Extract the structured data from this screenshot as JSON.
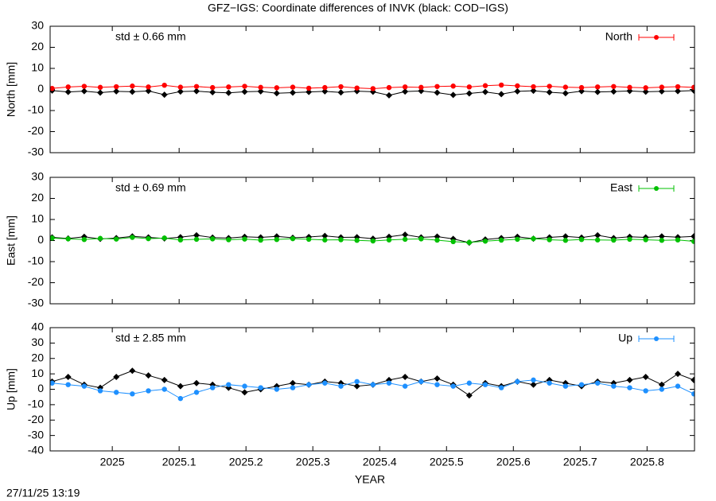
{
  "title": "GFZ−IGS: Coordinate differences of INVK (black: COD−IGS)",
  "timestamp": "27/11/25 13:19",
  "chart_data": [
    {
      "type": "line",
      "ylabel": "North [mm]",
      "annotation": "std ± 0.66 mm",
      "xlim": [
        2024.907,
        2025.871
      ],
      "xticks": [
        2025,
        2025.1,
        2025.2,
        2025.3,
        2025.4,
        2025.5,
        2025.6,
        2025.7,
        2025.8
      ],
      "ylim": [
        -30,
        30
      ],
      "yticks": [
        -30,
        -20,
        -10,
        0,
        10,
        20,
        30
      ],
      "legend": "upper right",
      "x": [
        2024.91,
        2024.934,
        2024.958,
        2024.982,
        2025.006,
        2025.03,
        2025.054,
        2025.078,
        2025.102,
        2025.126,
        2025.15,
        2025.174,
        2025.198,
        2025.222,
        2025.246,
        2025.27,
        2025.294,
        2025.318,
        2025.342,
        2025.366,
        2025.39,
        2025.414,
        2025.438,
        2025.462,
        2025.486,
        2025.51,
        2025.534,
        2025.558,
        2025.582,
        2025.606,
        2025.63,
        2025.654,
        2025.678,
        2025.702,
        2025.726,
        2025.75,
        2025.774,
        2025.798,
        2025.822,
        2025.846,
        2025.87
      ],
      "series": [
        {
          "color": "#000000",
          "values": [
            -0.5,
            -1.2,
            -0.8,
            -1.5,
            -0.9,
            -1.1,
            -0.7,
            -2.5,
            -1.0,
            -0.8,
            -1.3,
            -1.6,
            -1.1,
            -0.9,
            -1.8,
            -1.5,
            -1.2,
            -0.9,
            -1.4,
            -0.8,
            -1.1,
            -2.8,
            -1.0,
            -0.7,
            -1.5,
            -2.6,
            -1.9,
            -1.2,
            -2.2,
            -0.9,
            -0.6,
            -1.3,
            -1.8,
            -0.8,
            -1.2,
            -1.0,
            -0.7,
            -1.1,
            -0.9,
            -0.8,
            -0.5
          ]
        },
        {
          "name": "North",
          "color": "#ff0000",
          "values": [
            0.5,
            1.2,
            1.5,
            1.0,
            1.3,
            1.6,
            1.2,
            2.0,
            1.1,
            1.4,
            0.9,
            1.2,
            1.5,
            1.0,
            0.8,
            1.1,
            0.6,
            0.9,
            1.3,
            0.7,
            0.4,
            0.9,
            1.2,
            1.0,
            1.4,
            1.6,
            1.2,
            1.8,
            2.1,
            1.7,
            1.3,
            1.5,
            1.1,
            0.9,
            1.2,
            1.4,
            1.0,
            0.8,
            1.1,
            1.3,
            1.0
          ]
        }
      ]
    },
    {
      "type": "line",
      "ylabel": "East [mm]",
      "annotation": "std ± 0.69 mm",
      "xlim": [
        2024.907,
        2025.871
      ],
      "xticks": [
        2025,
        2025.1,
        2025.2,
        2025.3,
        2025.4,
        2025.5,
        2025.6,
        2025.7,
        2025.8
      ],
      "ylim": [
        -30,
        30
      ],
      "yticks": [
        -30,
        -20,
        -10,
        0,
        10,
        20,
        30
      ],
      "legend": "upper right",
      "x": [
        2024.91,
        2024.934,
        2024.958,
        2024.982,
        2025.006,
        2025.03,
        2025.054,
        2025.078,
        2025.102,
        2025.126,
        2025.15,
        2025.174,
        2025.198,
        2025.222,
        2025.246,
        2025.27,
        2025.294,
        2025.318,
        2025.342,
        2025.366,
        2025.39,
        2025.414,
        2025.438,
        2025.462,
        2025.486,
        2025.51,
        2025.534,
        2025.558,
        2025.582,
        2025.606,
        2025.63,
        2025.654,
        2025.678,
        2025.702,
        2025.726,
        2025.75,
        2025.774,
        2025.798,
        2025.822,
        2025.846,
        2025.87
      ],
      "series": [
        {
          "color": "#000000",
          "values": [
            1.5,
            1.0,
            1.8,
            0.8,
            1.2,
            2.0,
            1.5,
            1.0,
            1.6,
            2.5,
            1.4,
            1.2,
            1.8,
            1.5,
            2.0,
            1.3,
            1.7,
            2.2,
            1.5,
            1.6,
            0.9,
            1.8,
            2.8,
            1.5,
            1.9,
            0.8,
            -1.0,
            0.5,
            1.2,
            1.8,
            0.9,
            1.5,
            2.0,
            1.4,
            2.5,
            1.2,
            1.8,
            1.5,
            2.0,
            1.6,
            2.0
          ]
        },
        {
          "name": "East",
          "color": "#00c000",
          "values": [
            1.2,
            0.8,
            0.5,
            1.0,
            0.7,
            1.5,
            0.9,
            1.2,
            0.3,
            0.6,
            0.8,
            0.4,
            0.7,
            0.2,
            0.5,
            0.9,
            0.6,
            0.3,
            0.4,
            0.1,
            -0.2,
            0.3,
            0.6,
            0.8,
            0.2,
            -0.5,
            -0.9,
            -0.3,
            0.2,
            0.6,
            0.9,
            0.4,
            0.1,
            0.5,
            0.3,
            0.2,
            0.6,
            0.4,
            0.1,
            0.3,
            -0.4
          ]
        }
      ]
    },
    {
      "type": "line",
      "ylabel": "Up [mm]",
      "xlabel": "YEAR",
      "annotation": "std ± 2.85 mm",
      "xlim": [
        2024.907,
        2025.871
      ],
      "xticks": [
        2025,
        2025.1,
        2025.2,
        2025.3,
        2025.4,
        2025.5,
        2025.6,
        2025.7,
        2025.8
      ],
      "ylim": [
        -40,
        40
      ],
      "yticks": [
        -40,
        -30,
        -20,
        -10,
        0,
        10,
        20,
        30,
        40
      ],
      "legend": "upper right",
      "x": [
        2024.91,
        2024.934,
        2024.958,
        2024.982,
        2025.006,
        2025.03,
        2025.054,
        2025.078,
        2025.102,
        2025.126,
        2025.15,
        2025.174,
        2025.198,
        2025.222,
        2025.246,
        2025.27,
        2025.294,
        2025.318,
        2025.342,
        2025.366,
        2025.39,
        2025.414,
        2025.438,
        2025.462,
        2025.486,
        2025.51,
        2025.534,
        2025.558,
        2025.582,
        2025.606,
        2025.63,
        2025.654,
        2025.678,
        2025.702,
        2025.726,
        2025.75,
        2025.774,
        2025.798,
        2025.822,
        2025.846,
        2025.87
      ],
      "series": [
        {
          "color": "#000000",
          "values": [
            5,
            8,
            3,
            1,
            8,
            12,
            9,
            6,
            2,
            4,
            3,
            1,
            -2,
            0,
            2,
            4,
            3,
            5,
            4,
            2,
            3,
            6,
            8,
            5,
            7,
            3,
            -4,
            4,
            2,
            5,
            3,
            6,
            4,
            2,
            5,
            4,
            6,
            8,
            3,
            10,
            6
          ]
        },
        {
          "name": "Up",
          "color": "#1e90ff",
          "values": [
            4,
            3,
            2,
            -1,
            -2,
            -3,
            -1,
            0,
            -6,
            -2,
            1,
            3,
            2,
            1,
            0,
            1,
            3,
            4,
            2,
            5,
            3,
            4,
            2,
            5,
            3,
            2,
            4,
            3,
            1,
            5,
            6,
            4,
            2,
            3,
            4,
            2,
            1,
            -1,
            0,
            2,
            -3
          ]
        }
      ]
    }
  ]
}
